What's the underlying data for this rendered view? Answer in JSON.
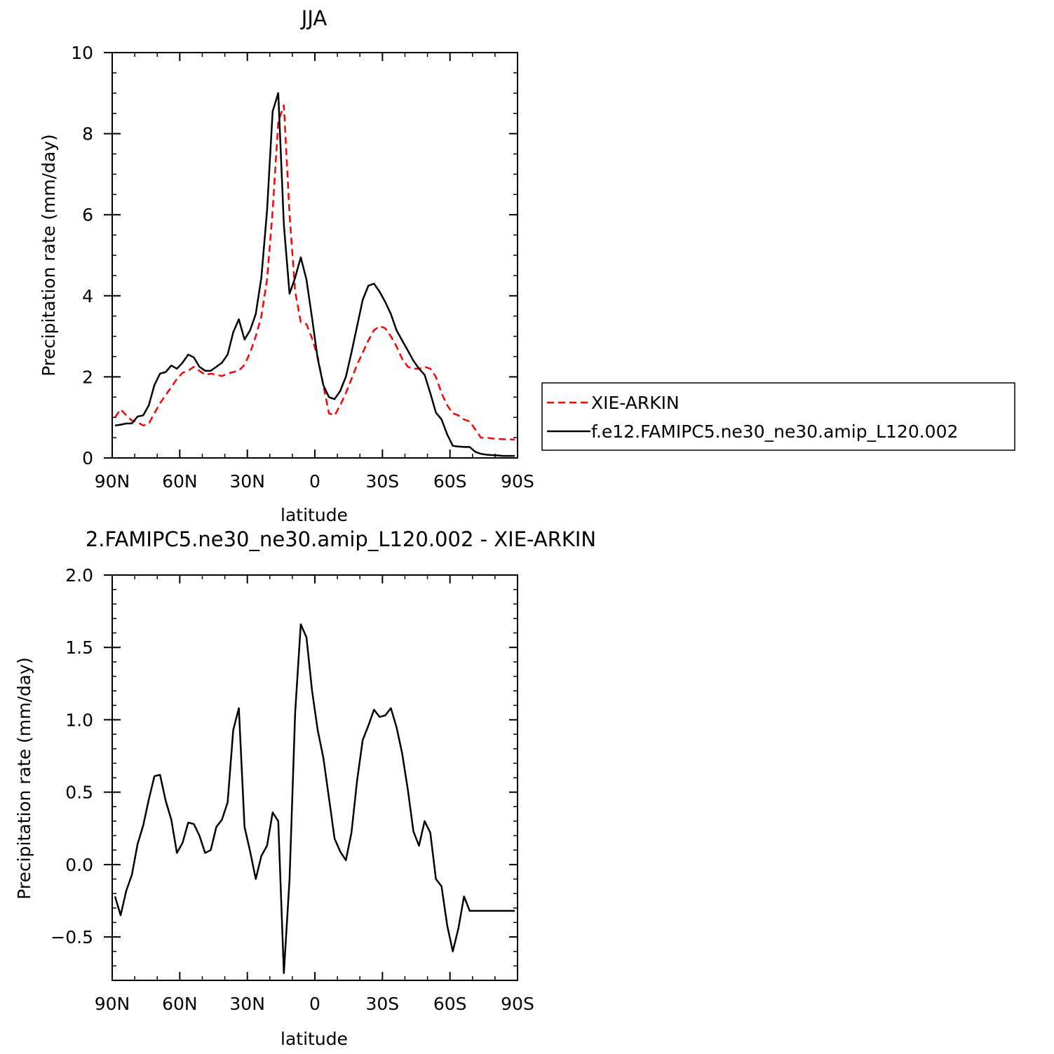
{
  "chart_data": [
    {
      "type": "line",
      "title": "JJA",
      "xlabel": "latitude",
      "ylabel": "Precipitation rate (mm/day)",
      "xlim": [
        90,
        -90
      ],
      "ylim": [
        0,
        10
      ],
      "x_ticks": [
        {
          "value": 90,
          "label": "90N"
        },
        {
          "value": 60,
          "label": "60N"
        },
        {
          "value": 30,
          "label": "30N"
        },
        {
          "value": 0,
          "label": "0"
        },
        {
          "value": -30,
          "label": "30S"
        },
        {
          "value": -60,
          "label": "60S"
        },
        {
          "value": -90,
          "label": "90S"
        }
      ],
      "y_ticks": [
        {
          "value": 0,
          "label": "0"
        },
        {
          "value": 2,
          "label": "2"
        },
        {
          "value": 4,
          "label": "4"
        },
        {
          "value": 6,
          "label": "6"
        },
        {
          "value": 8,
          "label": "8"
        },
        {
          "value": 10,
          "label": "10"
        }
      ],
      "legend_position": "right",
      "series": [
        {
          "name": "XIE-ARKIN",
          "color": "#ff0000",
          "dashed": true,
          "x": [
            88.75,
            86.25,
            83.75,
            81.25,
            78.75,
            76.25,
            73.75,
            71.25,
            68.75,
            66.25,
            63.75,
            61.25,
            58.75,
            56.25,
            53.75,
            51.25,
            48.75,
            46.25,
            43.75,
            41.25,
            38.75,
            36.25,
            33.75,
            31.25,
            28.75,
            26.25,
            23.75,
            21.25,
            18.75,
            16.25,
            13.75,
            11.25,
            8.75,
            6.25,
            3.75,
            1.25,
            -1.25,
            -3.75,
            -6.25,
            -8.75,
            -11.25,
            -13.75,
            -16.25,
            -18.75,
            -21.25,
            -23.75,
            -26.25,
            -28.75,
            -31.25,
            -33.75,
            -36.25,
            -38.75,
            -41.25,
            -43.75,
            -46.25,
            -48.75,
            -51.25,
            -53.75,
            -56.25,
            -58.75,
            -61.25,
            -63.75,
            -66.25,
            -68.75,
            -71.25,
            -73.75,
            -76.25,
            -78.75,
            -81.25,
            -83.75,
            -86.25,
            -88.75
          ],
          "y": [
            1.0,
            1.2,
            1.05,
            0.92,
            0.88,
            0.8,
            0.85,
            1.1,
            1.35,
            1.55,
            1.75,
            1.95,
            2.1,
            2.15,
            2.25,
            2.15,
            2.05,
            2.08,
            2.05,
            2.02,
            2.08,
            2.12,
            2.15,
            2.3,
            2.6,
            3.0,
            3.5,
            4.4,
            6.1,
            8.3,
            8.7,
            6.0,
            4.1,
            3.35,
            3.3,
            2.95,
            2.5,
            1.8,
            1.1,
            1.05,
            1.3,
            1.6,
            1.95,
            2.3,
            2.6,
            2.9,
            3.15,
            3.25,
            3.2,
            3.0,
            2.75,
            2.45,
            2.25,
            2.2,
            2.2,
            2.25,
            2.2,
            2.0,
            1.6,
            1.3,
            1.1,
            1.05,
            0.95,
            0.9,
            0.7,
            0.5,
            0.5,
            0.48,
            0.47,
            0.46,
            0.46,
            0.45
          ]
        },
        {
          "name": "f.e12.FAMIPC5.ne30_ne30.amip_L120.002",
          "color": "#000000",
          "dashed": false,
          "x": [
            88.75,
            86.25,
            83.75,
            81.25,
            78.75,
            76.25,
            73.75,
            71.25,
            68.75,
            66.25,
            63.75,
            61.25,
            58.75,
            56.25,
            53.75,
            51.25,
            48.75,
            46.25,
            43.75,
            41.25,
            38.75,
            36.25,
            33.75,
            31.25,
            28.75,
            26.25,
            23.75,
            21.25,
            18.75,
            16.25,
            13.75,
            11.25,
            8.75,
            6.25,
            3.75,
            1.25,
            -1.25,
            -3.75,
            -6.25,
            -8.75,
            -11.25,
            -13.75,
            -16.25,
            -18.75,
            -21.25,
            -23.75,
            -26.25,
            -28.75,
            -31.25,
            -33.75,
            -36.25,
            -38.75,
            -41.25,
            -43.75,
            -46.25,
            -48.75,
            -51.25,
            -53.75,
            -56.25,
            -58.75,
            -61.25,
            -63.75,
            -66.25,
            -68.75,
            -71.25,
            -73.75,
            -76.25,
            -78.75,
            -81.25,
            -83.75,
            -86.25,
            -88.75
          ],
          "y": [
            0.8,
            0.82,
            0.85,
            0.85,
            1.02,
            1.05,
            1.3,
            1.8,
            2.08,
            2.12,
            2.28,
            2.2,
            2.35,
            2.55,
            2.48,
            2.25,
            2.15,
            2.15,
            2.25,
            2.35,
            2.55,
            3.1,
            3.42,
            2.92,
            3.15,
            3.55,
            4.45,
            6.1,
            8.55,
            9.0,
            5.75,
            4.05,
            4.45,
            4.95,
            4.4,
            3.45,
            2.45,
            1.8,
            1.5,
            1.45,
            1.65,
            2.0,
            2.6,
            3.25,
            3.9,
            4.25,
            4.3,
            4.1,
            3.85,
            3.55,
            3.15,
            2.9,
            2.65,
            2.4,
            2.2,
            2.05,
            1.6,
            1.12,
            0.95,
            0.58,
            0.3,
            0.28,
            0.27,
            0.27,
            0.15,
            0.1,
            0.08,
            0.07,
            0.06,
            0.05,
            0.05,
            0.05
          ]
        }
      ]
    },
    {
      "type": "line",
      "title": "2.FAMIPC5.ne30_ne30.amip_L120.002 - XIE-ARKIN",
      "xlabel": "latitude",
      "ylabel": "Precipitation rate (mm/day)",
      "xlim": [
        90,
        -90
      ],
      "ylim": [
        -0.8,
        2.0
      ],
      "x_ticks": [
        {
          "value": 90,
          "label": "90N"
        },
        {
          "value": 60,
          "label": "60N"
        },
        {
          "value": 30,
          "label": "30N"
        },
        {
          "value": 0,
          "label": "0"
        },
        {
          "value": -30,
          "label": "30S"
        },
        {
          "value": -60,
          "label": "60S"
        },
        {
          "value": -90,
          "label": "90S"
        }
      ],
      "y_ticks": [
        {
          "value": -0.5,
          "label": "−0.5"
        },
        {
          "value": 0.0,
          "label": "0.0"
        },
        {
          "value": 0.5,
          "label": "0.5"
        },
        {
          "value": 1.0,
          "label": "1.0"
        },
        {
          "value": 1.5,
          "label": "1.5"
        },
        {
          "value": 2.0,
          "label": "2.0"
        }
      ],
      "series": [
        {
          "name": "",
          "color": "#000000",
          "dashed": false,
          "x": [
            88.75,
            86.25,
            83.75,
            81.25,
            78.75,
            76.25,
            73.75,
            71.25,
            68.75,
            66.25,
            63.75,
            61.25,
            58.75,
            56.25,
            53.75,
            51.25,
            48.75,
            46.25,
            43.75,
            41.25,
            38.75,
            36.25,
            33.75,
            31.25,
            28.75,
            26.25,
            23.75,
            21.25,
            18.75,
            16.25,
            13.75,
            11.25,
            8.75,
            6.25,
            3.75,
            1.25,
            -1.25,
            -3.75,
            -6.25,
            -8.75,
            -11.25,
            -13.75,
            -16.25,
            -18.75,
            -21.25,
            -23.75,
            -26.25,
            -28.75,
            -31.25,
            -33.75,
            -36.25,
            -38.75,
            -41.25,
            -43.75,
            -46.25,
            -48.75,
            -51.25,
            -53.75,
            -56.25,
            -58.75,
            -61.25,
            -63.75,
            -66.25,
            -68.75,
            -71.25,
            -73.75,
            -76.25,
            -78.75,
            -81.25,
            -83.75,
            -86.25,
            -88.75
          ],
          "y": [
            -0.22,
            -0.35,
            -0.18,
            -0.07,
            0.14,
            0.27,
            0.45,
            0.61,
            0.62,
            0.44,
            0.31,
            0.08,
            0.15,
            0.29,
            0.28,
            0.2,
            0.08,
            0.1,
            0.26,
            0.31,
            0.43,
            0.93,
            1.08,
            0.26,
            0.09,
            -0.1,
            0.06,
            0.13,
            0.36,
            0.3,
            -0.75,
            -0.1,
            1.05,
            1.66,
            1.57,
            1.2,
            0.93,
            0.74,
            0.46,
            0.18,
            0.09,
            0.03,
            0.22,
            0.58,
            0.86,
            0.96,
            1.07,
            1.02,
            1.03,
            1.08,
            0.95,
            0.77,
            0.52,
            0.23,
            0.13,
            0.3,
            0.22,
            -0.1,
            -0.15,
            -0.42,
            -0.6,
            -0.44,
            -0.22,
            -0.32,
            -0.32,
            -0.32,
            -0.32,
            -0.32,
            -0.32,
            -0.32,
            -0.32,
            -0.32
          ]
        }
      ]
    }
  ]
}
